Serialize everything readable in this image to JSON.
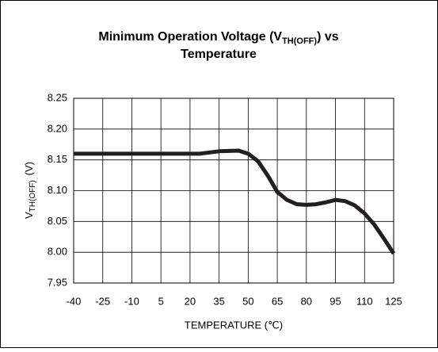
{
  "chart_data": {
    "type": "line",
    "title": {
      "line1": "Minimum Operation Voltage (V",
      "subscript": "TH(OFF)",
      "line1_end": ") vs",
      "line2": "Temperature"
    },
    "y_label": {
      "main": "V",
      "subscript": "TH(OFF)",
      "unit": "(V)"
    },
    "x_label": "TEMPERATURE (℃)",
    "x": [
      -40,
      25,
      35,
      45,
      50,
      55,
      60,
      65,
      70,
      75,
      80,
      85,
      90,
      95,
      100,
      105,
      110,
      115,
      120,
      125
    ],
    "series": [
      {
        "color": "#231f20",
        "values": [
          8.16,
          8.16,
          8.164,
          8.165,
          8.16,
          8.148,
          8.125,
          8.098,
          8.085,
          8.078,
          8.077,
          8.078,
          8.081,
          8.085,
          8.083,
          8.076,
          8.063,
          8.045,
          8.022,
          7.998
        ]
      }
    ],
    "xlim": [
      -40,
      125
    ],
    "xticks": [
      -40,
      -25,
      -10,
      5,
      20,
      35,
      50,
      65,
      80,
      95,
      110,
      125
    ],
    "ylim": [
      7.95,
      8.25
    ],
    "yticks": [
      7.95,
      {
        "value": 8.0,
        "label": "8.00"
      },
      8.05,
      {
        "value": 8.1,
        "label": "8.10"
      },
      8.15,
      {
        "value": 8.2,
        "label": "8.20"
      },
      8.25
    ],
    "grid": true
  }
}
